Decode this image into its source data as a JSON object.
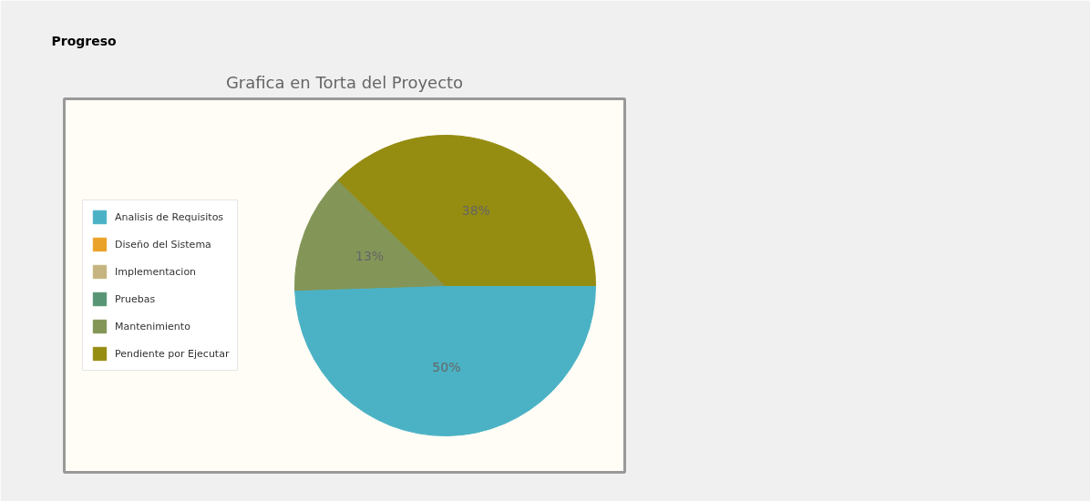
{
  "chart_data": {
    "type": "pie",
    "title": "Progreso",
    "subtitle": "Grafica en Torta del Proyecto",
    "categories": [
      "Analisis de Requisitos",
      "Diseño del Sistema",
      "Implementacion",
      "Pruebas",
      "Mantenimiento",
      "Pendiente por Ejecutar"
    ],
    "values": [
      50,
      0,
      0,
      0,
      13,
      38
    ],
    "colors": [
      "#4bb2c5",
      "#eaa228",
      "#c5b47f",
      "#579575",
      "#839557",
      "#958c12"
    ],
    "value_labels": [
      "50%",
      null,
      null,
      null,
      "13%",
      "38%"
    ],
    "legend": "left"
  }
}
